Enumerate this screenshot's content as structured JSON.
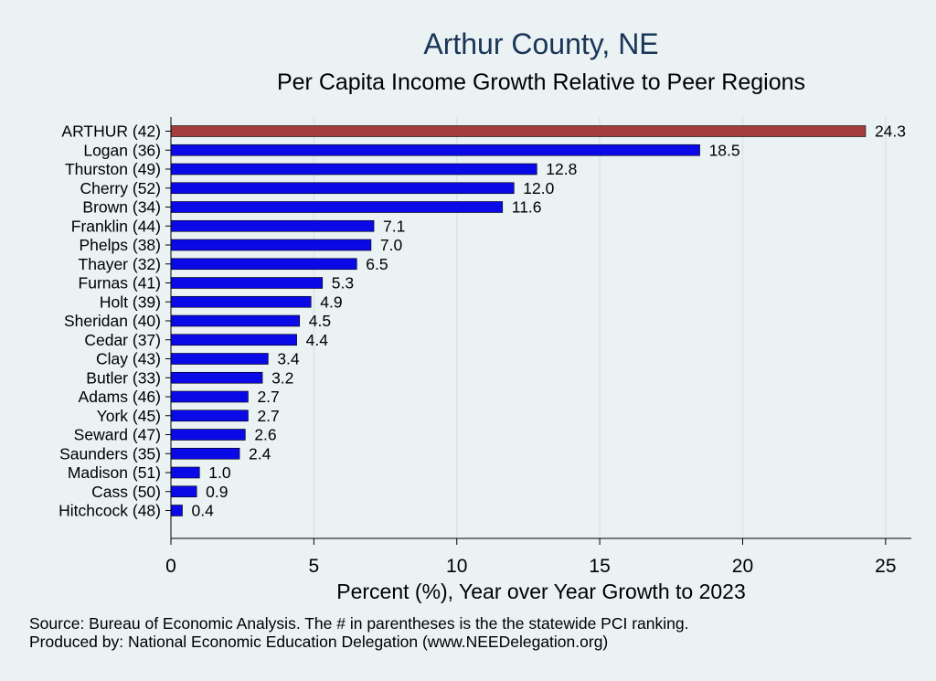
{
  "title": "Arthur County, NE",
  "subtitle": "Per Capita Income Growth Relative to Peer Regions",
  "notes": {
    "source": "Source: Bureau of Economic Analysis. The # in parentheses is the the statewide PCI ranking.",
    "producer": "Produced by: National Economic Education Delegation (www.NEEDelegation.org)"
  },
  "colors": {
    "background": "#eaf2f3",
    "highlight_bar": "#a33e3e",
    "bar": "#0a0ae6",
    "gridline": "#d9e6e8",
    "title": "#1a3557"
  },
  "chart_data": {
    "type": "bar",
    "orientation": "horizontal",
    "title": "Arthur County, NE",
    "subtitle": "Per Capita Income Growth Relative to Peer Regions",
    "xlabel": "Percent (%), Year over Year Growth to 2023",
    "ylabel": "",
    "xlim": [
      0,
      25.9
    ],
    "xticks": [
      0,
      5,
      10,
      15,
      20,
      25
    ],
    "grid": true,
    "legend": "none",
    "highlight_category": "ARTHUR (42)",
    "categories": [
      "ARTHUR (42)",
      "Logan (36)",
      "Thurston (49)",
      "Cherry (52)",
      "Brown (34)",
      "Franklin (44)",
      "Phelps (38)",
      "Thayer (32)",
      "Furnas (41)",
      "Holt (39)",
      "Sheridan (40)",
      "Cedar (37)",
      "Clay (43)",
      "Butler (33)",
      "Adams (46)",
      "York (45)",
      "Seward (47)",
      "Saunders (35)",
      "Madison (51)",
      "Cass (50)",
      "Hitchcock (48)"
    ],
    "values": [
      24.3,
      18.5,
      12.8,
      12.0,
      11.6,
      7.1,
      7.0,
      6.5,
      5.3,
      4.9,
      4.5,
      4.4,
      3.4,
      3.2,
      2.7,
      2.7,
      2.6,
      2.4,
      1.0,
      0.9,
      0.4
    ],
    "value_labels": [
      "24.3",
      "18.5",
      "12.8",
      "12.0",
      "11.6",
      "7.1",
      "7.0",
      "6.5",
      "5.3",
      "4.9",
      "4.5",
      "4.4",
      "3.4",
      "3.2",
      "2.7",
      "2.7",
      "2.6",
      "2.4",
      "1.0",
      "0.9",
      "0.4"
    ]
  }
}
